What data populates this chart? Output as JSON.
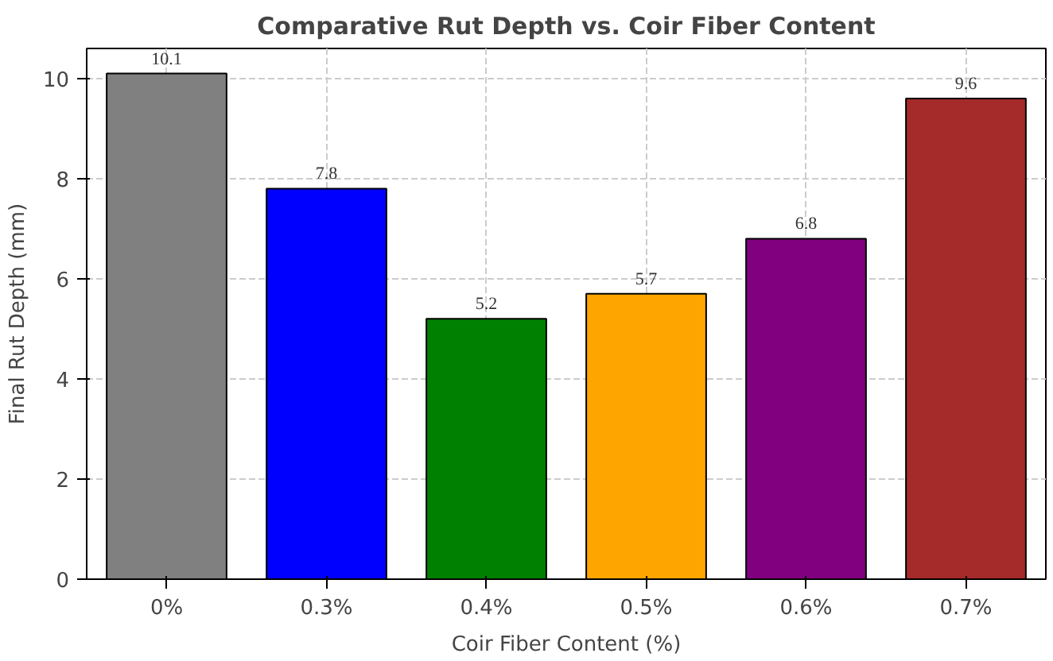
{
  "chart_data": {
    "type": "bar",
    "title": "Comparative Rut Depth vs. Coir Fiber Content",
    "xlabel": "Coir Fiber Content (%)",
    "ylabel": "Final Rut Depth (mm)",
    "categories": [
      "0%",
      "0.3%",
      "0.4%",
      "0.5%",
      "0.6%",
      "0.7%"
    ],
    "values": [
      10.1,
      7.8,
      5.2,
      5.7,
      6.8,
      9.6
    ],
    "colors": [
      "#808080",
      "#0000ff",
      "#008000",
      "#ffa500",
      "#800080",
      "#a52a2a"
    ],
    "ylim": [
      0,
      10.6
    ],
    "yticks": [
      0,
      2,
      4,
      6,
      8,
      10
    ],
    "grid": true,
    "data_labels": true
  }
}
